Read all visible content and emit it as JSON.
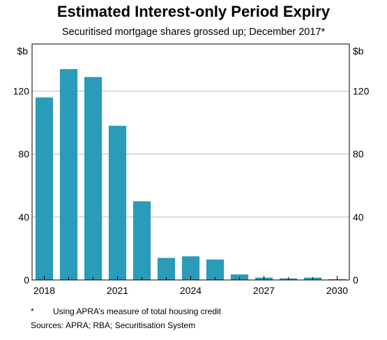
{
  "title": "Estimated Interest-only Period Expiry",
  "subtitle": "Securitised mortgage shares grossed up; December 2017*",
  "chart_data": {
    "type": "bar",
    "title": "Estimated Interest-only Period Expiry",
    "subtitle": "Securitised mortgage shares grossed up; December 2017*",
    "ylabel_left": "$b",
    "ylabel_right": "$b",
    "categories": [
      "2018",
      "2019",
      "2020",
      "2021",
      "2022",
      "2023",
      "2024",
      "2025",
      "2026",
      "2027",
      "2028",
      "2029",
      "2030"
    ],
    "values": [
      116,
      134,
      129,
      98,
      50,
      14,
      15,
      13,
      3.5,
      1.5,
      1,
      1.5,
      0.5
    ],
    "x_tick_labels": [
      "2018",
      "2021",
      "2024",
      "2027",
      "2030"
    ],
    "y_ticks": [
      0,
      40,
      80,
      120
    ],
    "ylim": [
      0,
      150
    ],
    "grid": true,
    "bar_color": "#2a9bb8"
  },
  "footnote": {
    "marker": "*",
    "text": "Using APRA’s measure of total housing credit"
  },
  "sources": "Sources:   APRA; RBA; Securitisation System"
}
